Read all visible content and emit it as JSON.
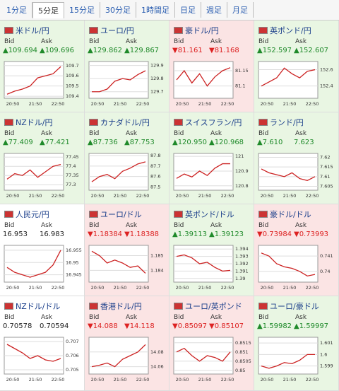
{
  "tabs": [
    "1分足",
    "5分足",
    "15分足",
    "30分足",
    "1時間足",
    "日足",
    "週足",
    "月足"
  ],
  "selected_tab": 1,
  "bid_label": "Bid",
  "ask_label": "Ask",
  "chart_times": [
    "20:50",
    "21:50",
    "22:50"
  ],
  "cards": [
    {
      "name": "米ドル/円",
      "bid": "▲109.694",
      "ask": "▲109.696",
      "change": "up",
      "ylim": [
        109.38,
        109.74
      ],
      "yticks": [
        109.7,
        109.6,
        109.5,
        109.4
      ],
      "closes": [
        109.42,
        109.45,
        109.47,
        109.5,
        109.58,
        109.6,
        109.62,
        109.69
      ]
    },
    {
      "name": "ユーロ/円",
      "bid": "▲129.862",
      "ask": "▲129.867",
      "change": "up",
      "ylim": [
        129.65,
        129.93
      ],
      "yticks": [
        129.9,
        129.8,
        129.7
      ],
      "closes": [
        129.7,
        129.7,
        129.72,
        129.78,
        129.8,
        129.79,
        129.83,
        129.86
      ]
    },
    {
      "name": "豪ドル/円",
      "bid": "▼81.161",
      "ask": "▼81.168",
      "change": "down",
      "ylim": [
        81.06,
        81.18
      ],
      "yticks": [
        81.15,
        81.1
      ],
      "closes": [
        81.12,
        81.15,
        81.11,
        81.14,
        81.1,
        81.13,
        81.15,
        81.16
      ]
    },
    {
      "name": "英ポンド/円",
      "bid": "▲152.597",
      "ask": "▲152.607",
      "change": "up",
      "ylim": [
        152.25,
        152.7
      ],
      "yticks": [
        152.6,
        152.4
      ],
      "closes": [
        152.4,
        152.45,
        152.5,
        152.62,
        152.55,
        152.5,
        152.58,
        152.6
      ]
    },
    {
      "name": "NZドル/円",
      "bid": "▲77.409",
      "ask": "▲77.421",
      "change": "up",
      "ylim": [
        77.27,
        77.47
      ],
      "yticks": [
        77.45,
        77.4,
        77.35,
        77.3
      ],
      "closes": [
        77.33,
        77.36,
        77.35,
        77.38,
        77.34,
        77.37,
        77.4,
        77.41
      ]
    },
    {
      "name": "カナダドル/円",
      "bid": "▲87.736",
      "ask": "▲87.753",
      "change": "up",
      "ylim": [
        87.47,
        87.82
      ],
      "yticks": [
        87.8,
        87.7,
        87.6,
        87.5
      ],
      "closes": [
        87.55,
        87.6,
        87.62,
        87.58,
        87.65,
        87.68,
        87.72,
        87.74
      ]
    },
    {
      "name": "スイスフラン/円",
      "bid": "▲120.950",
      "ask": "▲120.968",
      "change": "up",
      "ylim": [
        120.77,
        121.02
      ],
      "yticks": [
        121,
        120.9,
        120.8
      ],
      "closes": [
        120.85,
        120.88,
        120.86,
        120.9,
        120.87,
        120.92,
        120.95,
        120.95
      ]
    },
    {
      "name": "ランド/円",
      "bid": "▲7.610",
      "ask": "7.623",
      "change": "up",
      "ylim": [
        7.603,
        7.622
      ],
      "yticks": [
        7.62,
        7.615,
        7.61,
        7.605
      ],
      "closes": [
        7.614,
        7.612,
        7.611,
        7.61,
        7.612,
        7.609,
        7.608,
        7.61
      ]
    },
    {
      "name": "人民元/円",
      "bid": "16.953",
      "ask": "16.983",
      "change": "none",
      "ylim": [
        16.942,
        16.957
      ],
      "yticks": [
        16.955,
        16.95,
        16.945
      ],
      "closes": [
        16.948,
        16.946,
        16.945,
        16.944,
        16.945,
        16.946,
        16.949,
        16.955
      ]
    },
    {
      "name": "ユーロ/ドル",
      "bid": "▼1.18384",
      "ask": "▼1.18388",
      "change": "down",
      "ylim": [
        1.1832,
        1.1857
      ],
      "yticks": [
        1.185,
        1.184
      ],
      "closes": [
        1.1853,
        1.185,
        1.1845,
        1.1847,
        1.1845,
        1.1842,
        1.1843,
        1.1838
      ]
    },
    {
      "name": "英ポンド/ドル",
      "bid": "▲1.39113",
      "ask": "▲1.39123",
      "change": "up",
      "ylim": [
        1.3895,
        1.3945
      ],
      "yticks": [
        1.394,
        1.393,
        1.392,
        1.391,
        1.39
      ],
      "closes": [
        1.393,
        1.3932,
        1.3928,
        1.392,
        1.3922,
        1.3915,
        1.391,
        1.3911
      ]
    },
    {
      "name": "豪ドル/ドル",
      "bid": "▼0.73984",
      "ask": "▼0.73993",
      "change": "down",
      "ylim": [
        0.7393,
        0.7417
      ],
      "yticks": [
        0.741,
        0.74
      ],
      "closes": [
        0.7412,
        0.741,
        0.7405,
        0.7403,
        0.7402,
        0.74,
        0.7397,
        0.7398
      ]
    },
    {
      "name": "NZドル/ドル",
      "bid": "0.70578",
      "ask": "0.70594",
      "change": "none",
      "ylim": [
        0.7047,
        0.7073
      ],
      "yticks": [
        0.707,
        0.706,
        0.705
      ],
      "closes": [
        0.7068,
        0.7065,
        0.7062,
        0.7058,
        0.706,
        0.7057,
        0.7056,
        0.7058
      ]
    },
    {
      "name": "香港ドル/円",
      "bid": "▼14.088",
      "ask": "▼14.118",
      "change": "down",
      "ylim": [
        14.05,
        14.1
      ],
      "yticks": [
        14.08,
        14.06
      ],
      "closes": [
        14.06,
        14.062,
        14.065,
        14.06,
        14.07,
        14.075,
        14.08,
        14.09
      ]
    },
    {
      "name": "ユーロ/英ポンド",
      "bid": "▼0.85097",
      "ask": "▼0.85107",
      "change": "down",
      "ylim": [
        0.8498,
        0.8518
      ],
      "yticks": [
        0.8515,
        0.851,
        0.8505,
        0.85
      ],
      "closes": [
        0.851,
        0.8512,
        0.8508,
        0.8505,
        0.8508,
        0.8507,
        0.8505,
        0.851
      ]
    },
    {
      "name": "ユーロ/豪ドル",
      "bid": "▲1.59982",
      "ask": "▲1.59997",
      "change": "up",
      "ylim": [
        1.5983,
        1.6015
      ],
      "yticks": [
        1.601,
        1.6,
        1.599
      ],
      "closes": [
        1.599,
        1.5988,
        1.599,
        1.5993,
        1.5992,
        1.5995,
        1.6,
        1.6
      ]
    }
  ]
}
